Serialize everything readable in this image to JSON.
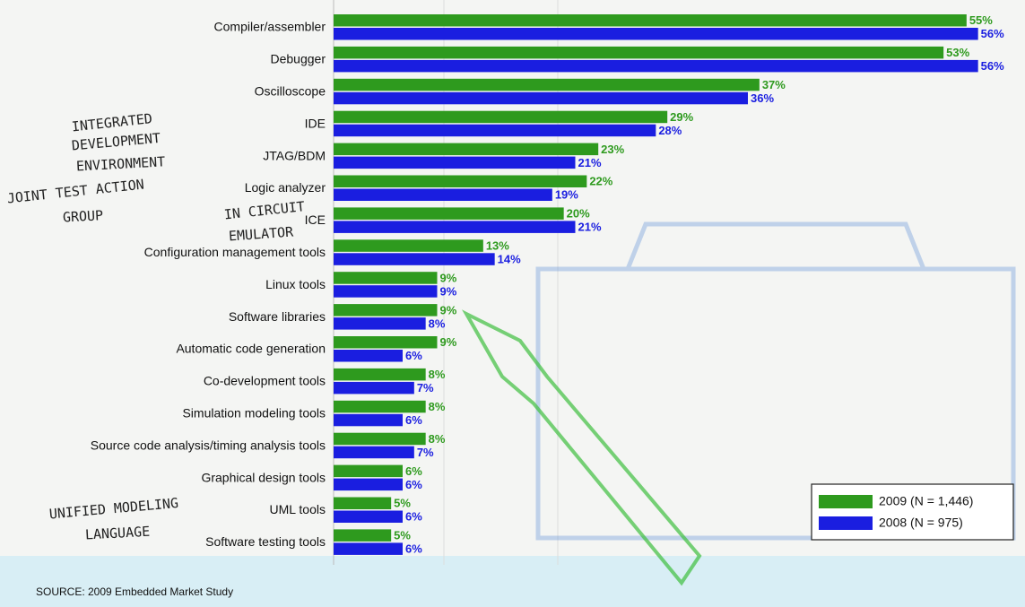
{
  "chart_data": {
    "type": "bar",
    "orientation": "horizontal",
    "categories": [
      "Compiler/assembler",
      "Debugger",
      "Oscilloscope",
      "IDE",
      "JTAG/BDM",
      "Logic analyzer",
      "ICE",
      "Configuration management tools",
      "Linux tools",
      "Software libraries",
      "Automatic code generation",
      "Co-development tools",
      "Simulation modeling tools",
      "Source code analysis/timing analysis tools",
      "Graphical design tools",
      "UML tools",
      "Software testing tools"
    ],
    "series": [
      {
        "name": "2009 (N = 1,446)",
        "color": "#2e9a1e",
        "values": [
          55,
          53,
          37,
          29,
          23,
          22,
          20,
          13,
          9,
          9,
          9,
          8,
          8,
          8,
          6,
          5,
          5
        ],
        "value_labels": [
          "55%",
          "53%",
          "37%",
          "29%",
          "23%",
          "22%",
          "20%",
          "13%",
          "9%",
          "9%",
          "9%",
          "8%",
          "8%",
          "8%",
          "6%",
          "5%",
          "5%"
        ]
      },
      {
        "name": "2008 (N = 975)",
        "color": "#1a1ee0",
        "values": [
          56,
          56,
          36,
          28,
          21,
          19,
          21,
          14,
          9,
          8,
          6,
          7,
          6,
          7,
          6,
          6,
          6
        ],
        "value_labels": [
          "56%",
          "56%",
          "36%",
          "28%",
          "21%",
          "19%",
          "21%",
          "14%",
          "9%",
          "8%",
          "6%",
          "7%",
          "6%",
          "7%",
          "6%",
          "6%",
          "6%"
        ]
      }
    ],
    "xlim": [
      0,
      60
    ],
    "source": "SOURCE: 2009 Embedded Market Study",
    "annotations": [
      "INTEGRATED",
      "DEVELOPMENT",
      "ENVIRONMENT",
      "JOINT TEST ACTION",
      "GROUP",
      "IN CIRCUIT",
      "EMULATOR",
      "UNIFIED MODELING",
      "LANGUAGE"
    ]
  }
}
